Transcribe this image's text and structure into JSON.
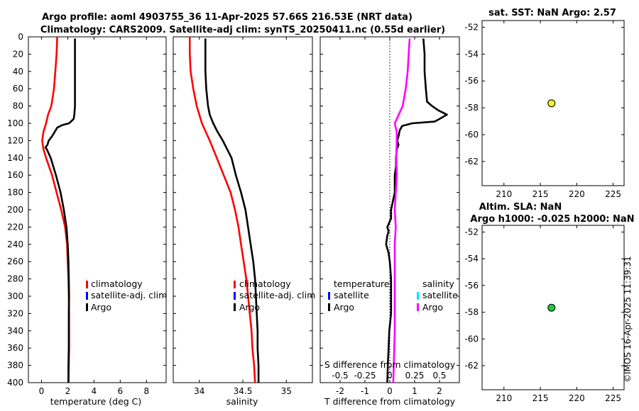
{
  "figure": {
    "title_line1": "Argo profile: aoml 4903755_36 11-Apr-2025 57.66S 216.53E (NRT data)",
    "title_line2": "Climatology: CARS2009. Satellite-adj clim: synTS_20250411.nc (0.55d earlier)",
    "stamp": "©IMOS 16-Apr-2025 11:39:31"
  },
  "colors": {
    "climatology": "#ff0000",
    "satellite_adj": "#0000ff",
    "argo": "#000000",
    "satellite_cyan": "#00e5ff",
    "salinity_magenta": "#ff00ff",
    "sst_marker": "#f2ee2a",
    "sla_marker": "#22c93c"
  },
  "chart_data": [
    {
      "id": "temperature",
      "type": "line",
      "xlabel": "temperature (deg C)",
      "xlim": [
        -1,
        9.5
      ],
      "xticks": [
        0,
        2,
        4,
        6,
        8
      ],
      "ylim": [
        0,
        400
      ],
      "yticks": [
        0,
        20,
        40,
        60,
        80,
        100,
        120,
        140,
        160,
        180,
        200,
        220,
        240,
        260,
        280,
        300,
        320,
        340,
        360,
        380,
        400
      ],
      "legend": [
        "climatology",
        "satellite-adj. clim",
        "Argo"
      ],
      "series": [
        {
          "name": "climatology",
          "color": "#ff0000",
          "depth": [
            0,
            20,
            40,
            60,
            80,
            90,
            100,
            110,
            120,
            130,
            140,
            160,
            180,
            200,
            220,
            240,
            260,
            280,
            300,
            320,
            340,
            360,
            380,
            400
          ],
          "values": [
            1.2,
            1.15,
            1.05,
            0.95,
            0.75,
            0.5,
            0.35,
            0.15,
            0.05,
            0.15,
            0.35,
            0.8,
            1.15,
            1.5,
            1.8,
            1.95,
            2.0,
            2.05,
            2.08,
            2.1,
            2.1,
            2.1,
            2.08,
            2.05
          ]
        },
        {
          "name": "Argo",
          "color": "#000000",
          "depth": [
            2,
            20,
            40,
            60,
            80,
            90,
            95,
            100,
            102,
            105,
            110,
            115,
            120,
            125,
            128,
            130,
            140,
            160,
            180,
            200,
            220,
            240,
            260,
            280,
            300,
            320,
            340,
            360,
            380,
            400
          ],
          "values": [
            2.55,
            2.55,
            2.55,
            2.55,
            2.55,
            2.5,
            2.45,
            2.1,
            1.6,
            1.2,
            1.0,
            0.8,
            0.55,
            0.45,
            0.3,
            0.4,
            0.7,
            1.1,
            1.45,
            1.7,
            1.9,
            2.0,
            2.05,
            2.08,
            2.1,
            2.08,
            2.08,
            2.08,
            2.05,
            2.05
          ]
        }
      ]
    },
    {
      "id": "salinity",
      "type": "line",
      "xlabel": "salinity",
      "xlim": [
        33.7,
        35.3
      ],
      "xticks": [
        34,
        34.5,
        35
      ],
      "ylim": [
        0,
        400
      ],
      "legend": [
        "climatology",
        "satellite-adj. clim",
        "Argo"
      ],
      "series": [
        {
          "name": "climatology",
          "color": "#ff0000",
          "depth": [
            0,
            20,
            40,
            60,
            80,
            100,
            120,
            140,
            160,
            180,
            200,
            220,
            240,
            260,
            280,
            300,
            320,
            340,
            360,
            380,
            400
          ],
          "values": [
            33.89,
            33.89,
            33.9,
            33.93,
            33.97,
            34.03,
            34.12,
            34.2,
            34.28,
            34.36,
            34.41,
            34.45,
            34.48,
            34.51,
            34.54,
            34.56,
            34.58,
            34.6,
            34.61,
            34.63,
            34.64
          ]
        },
        {
          "name": "Argo",
          "color": "#000000",
          "depth": [
            2,
            20,
            40,
            60,
            80,
            90,
            100,
            110,
            120,
            130,
            140,
            160,
            180,
            200,
            220,
            240,
            260,
            280,
            300,
            320,
            340,
            360,
            380,
            400
          ],
          "values": [
            34.07,
            34.07,
            34.07,
            34.08,
            34.1,
            34.12,
            34.16,
            34.21,
            34.27,
            34.32,
            34.37,
            34.42,
            34.48,
            34.53,
            34.56,
            34.59,
            34.62,
            34.64,
            34.65,
            34.66,
            34.67,
            34.67,
            34.68,
            34.68
          ]
        }
      ]
    },
    {
      "id": "difference",
      "type": "line",
      "xlabel_bottom": "T difference from climatology",
      "xlabel_top": "S difference from climatology",
      "xlim": [
        -2.8,
        2.8
      ],
      "xticks": [
        -2,
        -1,
        0,
        1,
        2
      ],
      "top_ticks": [
        "-0.5",
        "-0.25",
        "0",
        "0.25",
        "0.5"
      ],
      "top_tick_values": [
        -0.5,
        -0.25,
        0,
        0.25,
        0.5
      ],
      "ylim": [
        0,
        400
      ],
      "legend_temperature": {
        "header": "temperature",
        "items": [
          "satellite",
          "Argo"
        ]
      },
      "legend_salinity": {
        "header": "salinity",
        "items": [
          "satellite",
          "Argo"
        ]
      },
      "series": [
        {
          "name": "T difference (Argo)",
          "color": "#000000",
          "depth": [
            2,
            20,
            40,
            60,
            75,
            80,
            85,
            90,
            95,
            98,
            100,
            103,
            108,
            115,
            120,
            125,
            130,
            140,
            150,
            160,
            180,
            200,
            210,
            220,
            225,
            230,
            240,
            250,
            260,
            280,
            300,
            320,
            340,
            360,
            380,
            400
          ],
          "values": [
            1.35,
            1.4,
            1.4,
            1.45,
            1.5,
            1.7,
            1.95,
            2.3,
            2.0,
            1.8,
            0.9,
            0.5,
            0.4,
            0.35,
            0.3,
            0.35,
            0.28,
            0.25,
            0.25,
            0.2,
            0.2,
            0.05,
            0.05,
            -0.1,
            -0.05,
            -0.1,
            -0.15,
            -0.05,
            0.0,
            0.05,
            0.05,
            0.05,
            -0.02,
            -0.05,
            -0.08,
            -0.1
          ]
        },
        {
          "name": "S difference (Argo)",
          "color": "#ff00ff",
          "scale_factor": 4,
          "depth": [
            2,
            20,
            40,
            60,
            80,
            90,
            100,
            105,
            110,
            120,
            140,
            160,
            180,
            200,
            220,
            240,
            260,
            280,
            300,
            320,
            340,
            360,
            380,
            400
          ],
          "values": [
            0.2,
            0.19,
            0.18,
            0.16,
            0.13,
            0.09,
            0.05,
            0.06,
            0.07,
            0.07,
            0.065,
            0.07,
            0.06,
            0.05,
            0.06,
            0.05,
            0.05,
            0.05,
            0.05,
            0.05,
            0.05,
            0.045,
            0.04,
            0.035
          ]
        }
      ]
    },
    {
      "id": "sst_map",
      "type": "scatter",
      "title": "sat. SST: NaN Argo: 2.57",
      "xlim": [
        207,
        226.5
      ],
      "ylim": [
        -63.8,
        -51.5
      ],
      "xticks": [
        210,
        215,
        220,
        225
      ],
      "yticks": [
        -52,
        -54,
        -56,
        -58,
        -60,
        -62
      ],
      "points": [
        {
          "x": 216.53,
          "y": -57.66,
          "color": "#f2ee2a"
        }
      ]
    },
    {
      "id": "sla_map",
      "type": "scatter",
      "title_line1": "Altim. SLA: NaN",
      "title_line2": "Argo h1000: -0.025 h2000: NaN",
      "xlim": [
        207,
        226.5
      ],
      "ylim": [
        -63.8,
        -51.5
      ],
      "xticks": [
        210,
        215,
        220,
        225
      ],
      "yticks": [
        -52,
        -54,
        -56,
        -58,
        -60,
        -62
      ],
      "points": [
        {
          "x": 216.53,
          "y": -57.66,
          "color": "#22c93c"
        }
      ]
    }
  ]
}
